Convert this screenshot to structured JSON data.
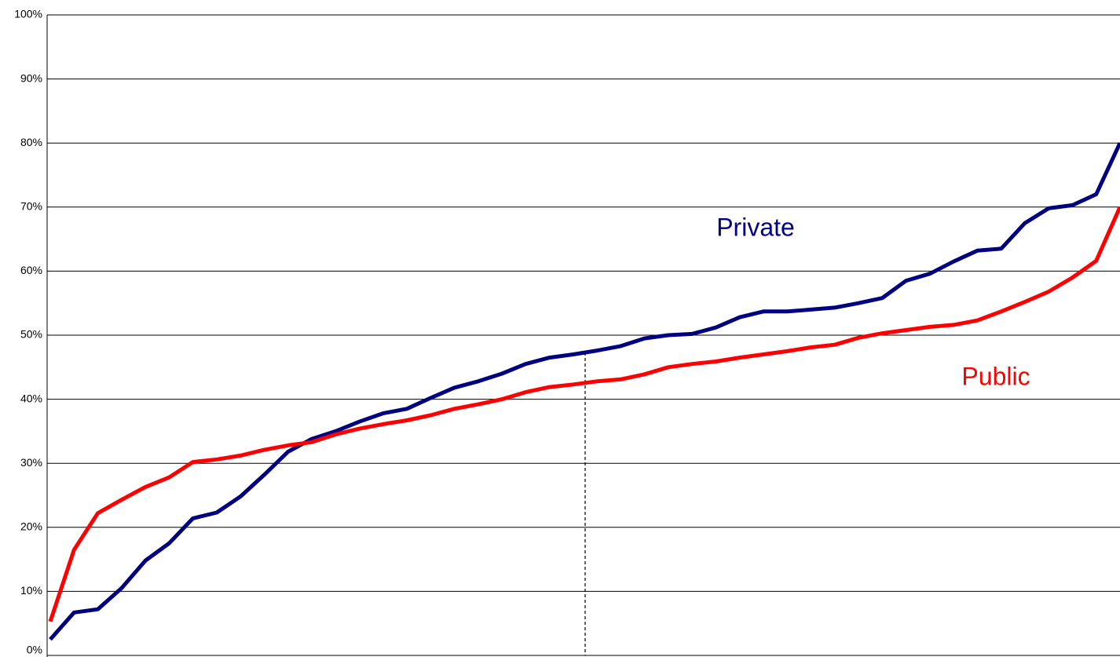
{
  "chart_data": {
    "type": "line",
    "categories": [
      null,
      null,
      null,
      null,
      null,
      null,
      null,
      null,
      null,
      null,
      null,
      null,
      null,
      null,
      null,
      null,
      null,
      null,
      null,
      null,
      null,
      null,
      null,
      null,
      null,
      null,
      null,
      null,
      null,
      null,
      null,
      null,
      null,
      null,
      null,
      null,
      null,
      null,
      null,
      null,
      null,
      null,
      null,
      null,
      null,
      null
    ],
    "series": [
      {
        "name": "Private",
        "color": "#000080",
        "values": [
          2.5,
          6.7,
          7.2,
          10.5,
          14.8,
          17.5,
          21.4,
          22.3,
          24.8,
          28.2,
          31.8,
          33.8,
          35,
          36.5,
          37.8,
          38.5,
          40.2,
          41.8,
          42.8,
          44,
          45.5,
          46.5,
          47,
          47.6,
          48.3,
          49.5,
          50,
          50.2,
          51.2,
          52.8,
          53.7,
          53.7,
          54,
          54.3,
          55,
          55.8,
          58.5,
          59.6,
          61.5,
          63.2,
          63.5,
          67.5,
          69.8,
          70.3,
          72,
          80
        ]
      },
      {
        "name": "Public",
        "color": "#ff0000",
        "values": [
          5.3,
          16.5,
          22.2,
          24.3,
          26.3,
          27.8,
          30.2,
          30.6,
          31.2,
          32.1,
          32.8,
          33.3,
          34.5,
          35.4,
          36.1,
          36.7,
          37.5,
          38.5,
          39.2,
          40,
          41.1,
          41.9,
          42.3,
          42.8,
          43.1,
          43.9,
          45,
          45.5,
          45.9,
          46.5,
          47,
          47.5,
          48.1,
          48.5,
          49.6,
          50.3,
          50.8,
          51.3,
          51.6,
          52.3,
          53.7,
          55.2,
          56.8,
          59,
          61.6,
          70
        ]
      }
    ],
    "ylim": [
      0,
      100
    ],
    "yticks": [
      {
        "value": 0,
        "label": "0%"
      },
      {
        "value": 10,
        "label": "10%"
      },
      {
        "value": 20,
        "label": "20%"
      },
      {
        "value": 30,
        "label": "30%"
      },
      {
        "value": 40,
        "label": "40%"
      },
      {
        "value": 50,
        "label": "50%"
      },
      {
        "value": 60,
        "label": "60%"
      },
      {
        "value": 70,
        "label": "70%"
      },
      {
        "value": 80,
        "label": "80%"
      },
      {
        "value": 90,
        "label": "90%"
      },
      {
        "value": 100,
        "label": "100%"
      }
    ],
    "grid": true
  }
}
